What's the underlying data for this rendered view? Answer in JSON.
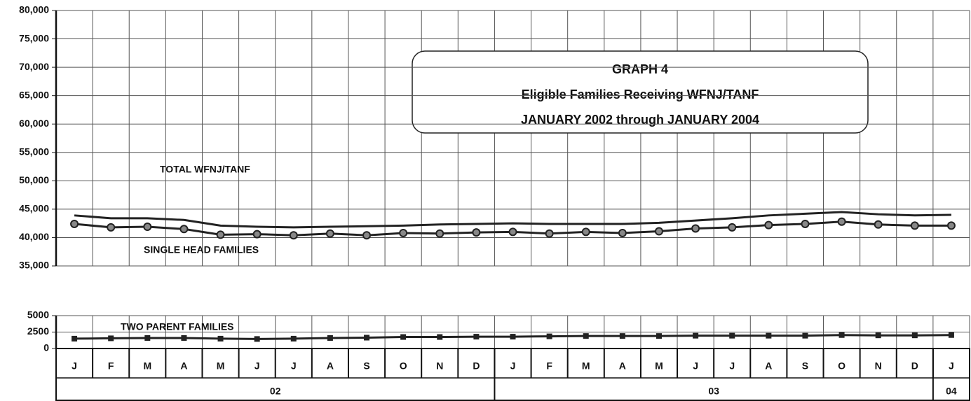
{
  "chart_data": [
    {
      "type": "line",
      "title": "GRAPH 4",
      "subtitle": [
        "Eligible Families Receiving WFNJ/TANF",
        "JANUARY 2002 through JANUARY  2004"
      ],
      "ylim": [
        35000,
        80000
      ],
      "yticks": [
        {
          "value": 35000,
          "label": "35,000"
        },
        {
          "value": 40000,
          "label": "40,000"
        },
        {
          "value": 45000,
          "label": "45,000"
        },
        {
          "value": 50000,
          "label": "50,000"
        },
        {
          "value": 55000,
          "label": "55,000"
        },
        {
          "value": 60000,
          "label": "60,000"
        },
        {
          "value": 65000,
          "label": "65,000"
        },
        {
          "value": 70000,
          "label": "70,000"
        },
        {
          "value": 75000,
          "label": "75,000"
        },
        {
          "value": 80000,
          "label": "80,000"
        }
      ],
      "grid": true,
      "series": [
        {
          "name": "TOTAL WFNJ/TANF",
          "color": "#222222",
          "marker": "none",
          "values": [
            43900,
            43400,
            43400,
            43100,
            42100,
            41900,
            41800,
            41900,
            42000,
            42100,
            42300,
            42400,
            42500,
            42400,
            42400,
            42400,
            42600,
            43000,
            43400,
            43900,
            44200,
            44500,
            44100,
            43900,
            44000
          ]
        },
        {
          "name": "SINGLE HEAD FAMILIES",
          "color": "#222222",
          "marker": "circle",
          "values": [
            42400,
            41800,
            41900,
            41500,
            40500,
            40600,
            40400,
            40700,
            40400,
            40800,
            40700,
            40900,
            41000,
            40700,
            41000,
            40800,
            41100,
            41600,
            41800,
            42200,
            42400,
            42800,
            42300,
            42100,
            42100
          ]
        }
      ]
    },
    {
      "type": "line",
      "categories": [
        "J",
        "F",
        "M",
        "A",
        "M",
        "J",
        "J",
        "A",
        "S",
        "O",
        "N",
        "D",
        "J",
        "F",
        "M",
        "A",
        "M",
        "J",
        "J",
        "A",
        "S",
        "O",
        "N",
        "D",
        "J"
      ],
      "year_groups": [
        {
          "label": "02",
          "months": 12
        },
        {
          "label": "03",
          "months": 12
        },
        {
          "label": "04",
          "months": 1
        }
      ],
      "ylim": [
        0,
        5000
      ],
      "yticks": [
        0,
        2500,
        5000
      ],
      "grid": true,
      "series": [
        {
          "name": "TWO PARENT FAMILIES",
          "color": "#222222",
          "marker": "square",
          "values": [
            1500,
            1550,
            1600,
            1600,
            1500,
            1450,
            1500,
            1600,
            1650,
            1750,
            1750,
            1800,
            1800,
            1850,
            1900,
            1900,
            1900,
            1950,
            1950,
            1950,
            1950,
            2050,
            2000,
            2000,
            2050
          ]
        }
      ]
    }
  ]
}
